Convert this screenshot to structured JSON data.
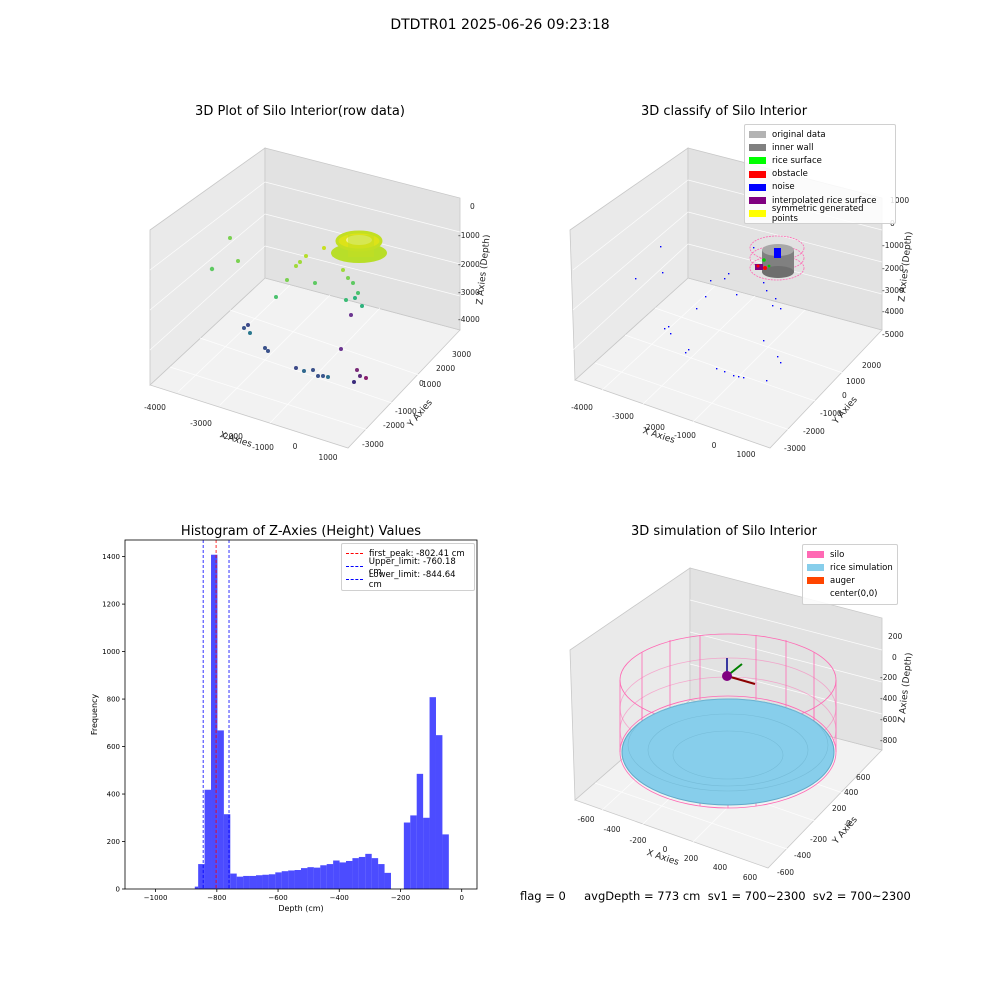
{
  "figure": {
    "suptitle": "DTDTR01 2025-06-26 09:23:18",
    "status_line": "flag = 0     avgDepth = 773 cm  sv1 = 700~2300  sv2 = 700~2300"
  },
  "panels": {
    "raw": {
      "title": "3D Plot of Silo Interior(row data)",
      "xlabel": "X Axies",
      "ylabel": "Y Axies",
      "zlabel": "Z Axies (Depth)",
      "x_ticks": [
        "-4000",
        "-3000",
        "-2000",
        "-1000",
        "0",
        "1000"
      ],
      "y_ticks": [
        "-3000",
        "-2000",
        "-1000",
        "0",
        "1000",
        "2000",
        "3000"
      ],
      "z_ticks": [
        "0",
        "-1000",
        "-2000",
        "-3000",
        "-4000"
      ]
    },
    "classify": {
      "title": "3D classify of Silo Interior",
      "xlabel": "X Axies",
      "ylabel": "Y Axies",
      "zlabel": "Z Axies (Depth)",
      "x_ticks": [
        "-4000",
        "-3000",
        "-2000",
        "-1000",
        "0",
        "1000"
      ],
      "y_ticks": [
        "-3000",
        "-2000",
        "-1000",
        "0",
        "1000",
        "2000"
      ],
      "z_ticks": [
        "1000",
        "0",
        "-1000",
        "-2000",
        "-3000",
        "-4000",
        "-5000"
      ],
      "legend": [
        {
          "label": "original data",
          "color": "#b3b3b3"
        },
        {
          "label": "inner wall",
          "color": "#808080"
        },
        {
          "label": "rice surface",
          "color": "#00ff00"
        },
        {
          "label": "obstacle",
          "color": "#ff0000"
        },
        {
          "label": "noise",
          "color": "#0000ff"
        },
        {
          "label": "interpolated rice surface",
          "color": "#800080"
        },
        {
          "label": "symmetric generated points",
          "color": "#ffff00"
        }
      ]
    },
    "simulation": {
      "title": "3D simulation of Silo Interior",
      "xlabel": "X Axies",
      "ylabel": "Y Axies",
      "zlabel": "Z Axies (Depth)",
      "x_ticks": [
        "-600",
        "-400",
        "-200",
        "0",
        "200",
        "400",
        "600"
      ],
      "y_ticks": [
        "-600",
        "-400",
        "-200",
        "0",
        "200",
        "400",
        "600"
      ],
      "z_ticks": [
        "200",
        "0",
        "-200",
        "-400",
        "-600",
        "-800"
      ],
      "legend": [
        {
          "label": "silo",
          "color": "#ff69b4"
        },
        {
          "label": "rice simulation",
          "color": "#87ceeb"
        },
        {
          "label": "auger",
          "color": "#ff4500"
        },
        {
          "label": "center(0,0)",
          "color": ""
        }
      ]
    }
  },
  "chart_data": {
    "type": "bar",
    "title": "Histogram of Z-Axies (Height) Values",
    "xlabel": "Depth (cm)",
    "ylabel": "Frequency",
    "xlim": [
      -1100,
      50
    ],
    "ylim": [
      0,
      1470
    ],
    "x_ticks": [
      -1000,
      -800,
      -600,
      -400,
      -200,
      0
    ],
    "y_ticks": [
      0,
      200,
      400,
      600,
      800,
      1000,
      1200,
      1400
    ],
    "bar_color": "#0000ff",
    "bins": [
      {
        "start": -872,
        "end": -861,
        "count": 10
      },
      {
        "start": -861,
        "end": -840,
        "count": 105
      },
      {
        "start": -840,
        "end": -819,
        "count": 418
      },
      {
        "start": -819,
        "end": -798,
        "count": 1408
      },
      {
        "start": -798,
        "end": -777,
        "count": 668
      },
      {
        "start": -777,
        "end": -756,
        "count": 315
      },
      {
        "start": -756,
        "end": -735,
        "count": 65
      },
      {
        "start": -735,
        "end": -714,
        "count": 52
      },
      {
        "start": -714,
        "end": -693,
        "count": 55
      },
      {
        "start": -693,
        "end": -672,
        "count": 55
      },
      {
        "start": -672,
        "end": -651,
        "count": 58
      },
      {
        "start": -651,
        "end": -630,
        "count": 60
      },
      {
        "start": -630,
        "end": -609,
        "count": 62
      },
      {
        "start": -609,
        "end": -588,
        "count": 70
      },
      {
        "start": -588,
        "end": -567,
        "count": 75
      },
      {
        "start": -567,
        "end": -546,
        "count": 78
      },
      {
        "start": -546,
        "end": -525,
        "count": 80
      },
      {
        "start": -525,
        "end": -504,
        "count": 88
      },
      {
        "start": -504,
        "end": -483,
        "count": 92
      },
      {
        "start": -483,
        "end": -462,
        "count": 90
      },
      {
        "start": -462,
        "end": -441,
        "count": 100
      },
      {
        "start": -441,
        "end": -420,
        "count": 105
      },
      {
        "start": -420,
        "end": -399,
        "count": 120
      },
      {
        "start": -399,
        "end": -378,
        "count": 112
      },
      {
        "start": -378,
        "end": -357,
        "count": 118
      },
      {
        "start": -357,
        "end": -336,
        "count": 130
      },
      {
        "start": -336,
        "end": -315,
        "count": 135
      },
      {
        "start": -315,
        "end": -294,
        "count": 148
      },
      {
        "start": -294,
        "end": -273,
        "count": 130
      },
      {
        "start": -273,
        "end": -252,
        "count": 105
      },
      {
        "start": -252,
        "end": -231,
        "count": 68
      },
      {
        "start": -189,
        "end": -168,
        "count": 280
      },
      {
        "start": -168,
        "end": -147,
        "count": 310
      },
      {
        "start": -147,
        "end": -126,
        "count": 485
      },
      {
        "start": -126,
        "end": -105,
        "count": 300
      },
      {
        "start": -105,
        "end": -84,
        "count": 808
      },
      {
        "start": -84,
        "end": -63,
        "count": 648
      },
      {
        "start": -63,
        "end": -42,
        "count": 230
      }
    ],
    "reference_lines": [
      {
        "label": "first_peak: -802.41 cm",
        "x": -802.41,
        "color": "#ff0000"
      },
      {
        "label": "Upper_limit: -760.18 cm",
        "x": -760.18,
        "color": "#0000ff"
      },
      {
        "label": "Lower_limit: -844.64 cm",
        "x": -844.64,
        "color": "#0000ff"
      }
    ]
  }
}
